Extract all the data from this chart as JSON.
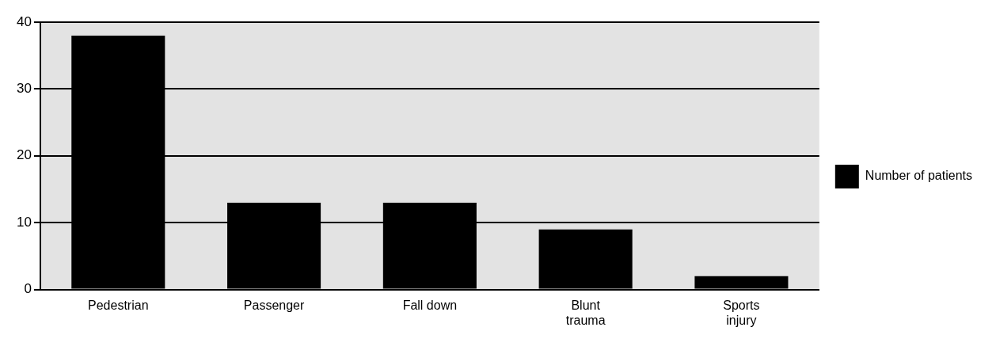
{
  "chart_data": {
    "type": "bar",
    "categories": [
      "Pedestrian",
      "Passenger",
      "Fall down",
      "Blunt trauma",
      "Sports injury"
    ],
    "series": [
      {
        "name": "Number of patients",
        "color": "#000000",
        "values": [
          38,
          13,
          13,
          9,
          2
        ]
      }
    ],
    "ylim": [
      0,
      40
    ],
    "yticks": [
      0,
      10,
      20,
      30,
      40
    ],
    "grid": "y",
    "legend": "right"
  }
}
